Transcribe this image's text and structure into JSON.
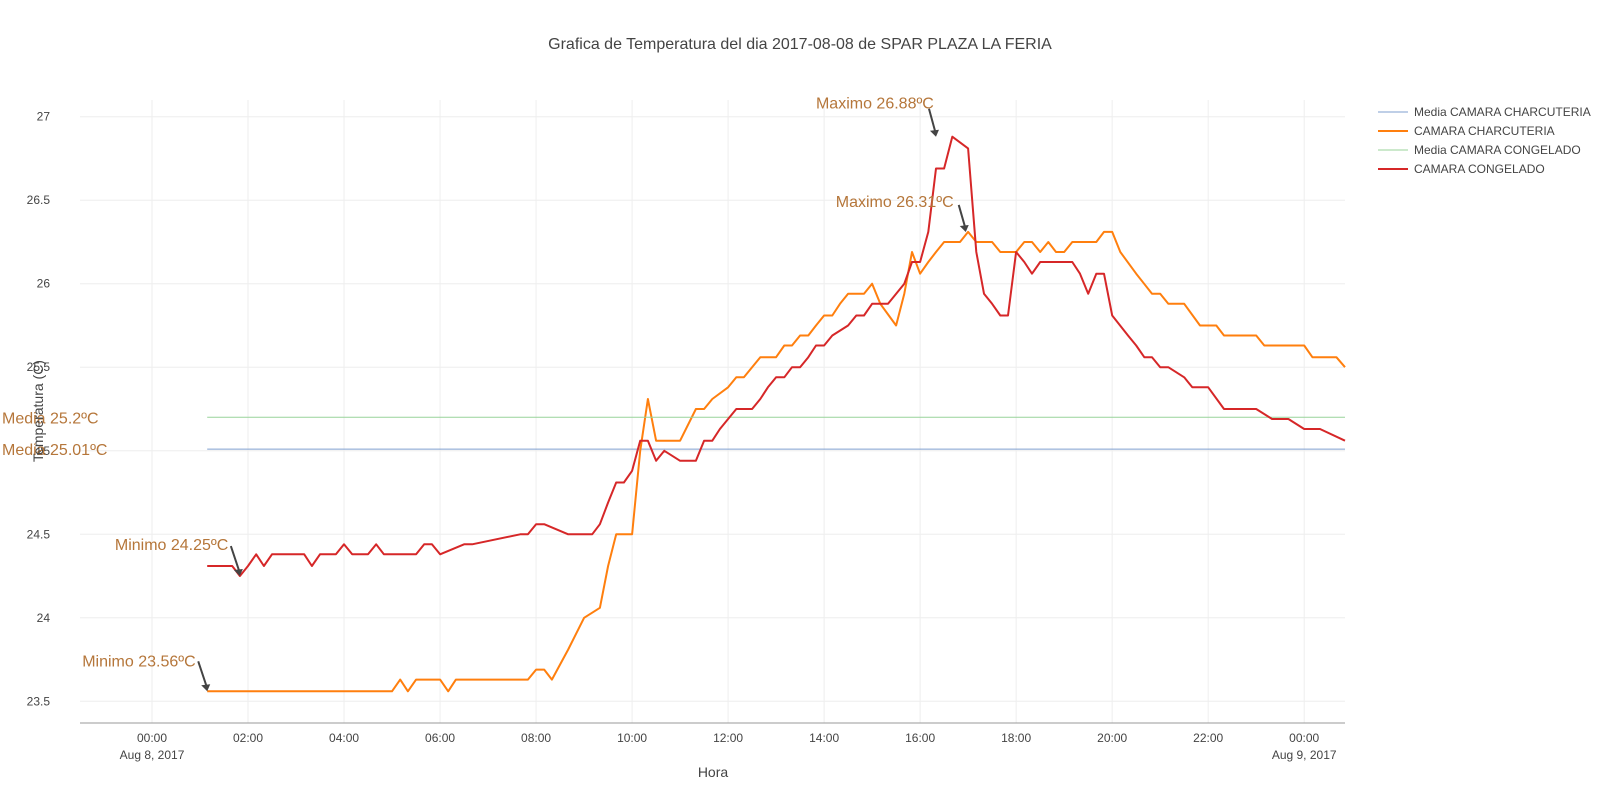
{
  "chart_data": {
    "type": "line",
    "title": "Grafica de Temperatura del dia 2017-08-08 de SPAR PLAZA LA FERIA",
    "xlabel": "Hora",
    "ylabel": "Temperatura (C)",
    "x_range": [
      -1.5,
      24.85
    ],
    "ylim": [
      23.37,
      27.1
    ],
    "grid": true,
    "legend_position": "top-right",
    "x_ticks": [
      {
        "value": 0,
        "label": "00:00",
        "sublabel": "Aug 8, 2017"
      },
      {
        "value": 2,
        "label": "02:00",
        "sublabel": ""
      },
      {
        "value": 4,
        "label": "04:00",
        "sublabel": ""
      },
      {
        "value": 6,
        "label": "06:00",
        "sublabel": ""
      },
      {
        "value": 8,
        "label": "08:00",
        "sublabel": ""
      },
      {
        "value": 10,
        "label": "10:00",
        "sublabel": ""
      },
      {
        "value": 12,
        "label": "12:00",
        "sublabel": ""
      },
      {
        "value": 14,
        "label": "14:00",
        "sublabel": ""
      },
      {
        "value": 16,
        "label": "16:00",
        "sublabel": ""
      },
      {
        "value": 18,
        "label": "18:00",
        "sublabel": ""
      },
      {
        "value": 20,
        "label": "20:00",
        "sublabel": ""
      },
      {
        "value": 22,
        "label": "22:00",
        "sublabel": ""
      },
      {
        "value": 24,
        "label": "00:00",
        "sublabel": "Aug 9, 2017"
      }
    ],
    "y_ticks": [
      {
        "value": 23.5,
        "label": "23.5"
      },
      {
        "value": 24,
        "label": "24"
      },
      {
        "value": 24.5,
        "label": "24.5"
      },
      {
        "value": 25,
        "label": "25"
      },
      {
        "value": 25.5,
        "label": "25.5"
      },
      {
        "value": 26,
        "label": "26"
      },
      {
        "value": 26.5,
        "label": "26.5"
      },
      {
        "value": 27,
        "label": "27"
      }
    ],
    "series": [
      {
        "name": "Media CAMARA CHARCUTERIA",
        "color": "#7f9fcf",
        "width": 1,
        "x": [
          1.15,
          24.85
        ],
        "y": [
          25.01,
          25.01
        ]
      },
      {
        "name": "CAMARA CHARCUTERIA",
        "color": "#ff7f0e",
        "width": 2,
        "x": [
          1.15,
          5.0,
          5.17,
          5.33,
          5.5,
          6.0,
          6.17,
          6.33,
          6.5,
          7.83,
          8.0,
          8.17,
          8.33,
          8.67,
          9.0,
          9.33,
          9.5,
          9.67,
          10.0,
          10.17,
          10.33,
          10.5,
          10.67,
          11.0,
          11.33,
          11.5,
          11.67,
          12.0,
          12.17,
          12.33,
          12.5,
          12.67,
          12.83,
          13.0,
          13.17,
          13.33,
          13.5,
          13.67,
          13.83,
          14.0,
          14.17,
          14.33,
          14.5,
          14.67,
          14.83,
          15.0,
          15.17,
          15.5,
          15.67,
          15.83,
          16.0,
          16.17,
          16.33,
          16.5,
          16.83,
          17.0,
          17.17,
          17.5,
          17.67,
          18.0,
          18.17,
          18.33,
          18.5,
          18.67,
          18.83,
          19.0,
          19.17,
          19.33,
          19.5,
          19.67,
          19.83,
          20.0,
          20.17,
          20.5,
          20.83,
          21.0,
          21.17,
          21.5,
          21.83,
          22.0,
          22.17,
          22.33,
          22.67,
          22.83,
          23.0,
          23.17,
          23.33,
          23.67,
          23.83,
          24.0,
          24.17,
          24.33,
          24.67,
          24.85
        ],
        "y": [
          23.56,
          23.56,
          23.63,
          23.56,
          23.63,
          23.63,
          23.56,
          23.63,
          23.63,
          23.63,
          23.69,
          23.69,
          23.63,
          23.81,
          24.0,
          24.06,
          24.31,
          24.5,
          24.5,
          25.0,
          25.31,
          25.06,
          25.06,
          25.06,
          25.25,
          25.25,
          25.31,
          25.38,
          25.44,
          25.44,
          25.5,
          25.56,
          25.56,
          25.56,
          25.63,
          25.63,
          25.69,
          25.69,
          25.75,
          25.81,
          25.81,
          25.88,
          25.94,
          25.94,
          25.94,
          26.0,
          25.88,
          25.75,
          25.94,
          26.19,
          26.06,
          26.13,
          26.19,
          26.25,
          26.25,
          26.31,
          26.25,
          26.25,
          26.19,
          26.19,
          26.25,
          26.25,
          26.19,
          26.25,
          26.19,
          26.19,
          26.25,
          26.25,
          26.25,
          26.25,
          26.31,
          26.31,
          26.19,
          26.06,
          25.94,
          25.94,
          25.88,
          25.88,
          25.75,
          25.75,
          25.75,
          25.69,
          25.69,
          25.69,
          25.69,
          25.63,
          25.63,
          25.63,
          25.63,
          25.63,
          25.56,
          25.56,
          25.56,
          25.5
        ]
      },
      {
        "name": "Media CAMARA CONGELADO",
        "color": "#98d39a",
        "width": 1,
        "x": [
          1.15,
          24.85
        ],
        "y": [
          25.2,
          25.2
        ]
      },
      {
        "name": "CAMARA CONGELADO",
        "color": "#d62728",
        "width": 2,
        "x": [
          1.15,
          1.67,
          1.83,
          2.0,
          2.17,
          2.33,
          2.5,
          3.17,
          3.33,
          3.5,
          3.83,
          4.0,
          4.17,
          4.5,
          4.67,
          4.83,
          5.5,
          5.67,
          5.83,
          6.0,
          6.5,
          6.67,
          7.67,
          7.83,
          8.0,
          8.17,
          8.67,
          8.83,
          9.17,
          9.33,
          9.5,
          9.67,
          9.83,
          10.0,
          10.17,
          10.33,
          10.5,
          10.67,
          11.0,
          11.33,
          11.5,
          11.67,
          11.83,
          12.0,
          12.17,
          12.5,
          12.67,
          12.83,
          13.0,
          13.17,
          13.33,
          13.5,
          13.67,
          13.83,
          14.0,
          14.17,
          14.5,
          14.67,
          14.83,
          15.0,
          15.17,
          15.33,
          15.67,
          15.83,
          16.0,
          16.17,
          16.33,
          16.5,
          16.67,
          17.0,
          17.17,
          17.33,
          17.5,
          17.67,
          17.83,
          18.0,
          18.17,
          18.33,
          18.5,
          18.67,
          19.0,
          19.17,
          19.33,
          19.5,
          19.67,
          19.83,
          20.0,
          20.33,
          20.5,
          20.67,
          20.83,
          21.0,
          21.17,
          21.5,
          21.67,
          21.83,
          22.0,
          22.33,
          22.67,
          22.83,
          23.0,
          23.33,
          23.5,
          23.67,
          24.0,
          24.17,
          24.33,
          24.85
        ],
        "y": [
          24.31,
          24.31,
          24.25,
          24.31,
          24.38,
          24.31,
          24.38,
          24.38,
          24.31,
          24.38,
          24.38,
          24.44,
          24.38,
          24.38,
          24.44,
          24.38,
          24.38,
          24.44,
          24.44,
          24.38,
          24.44,
          24.44,
          24.5,
          24.5,
          24.56,
          24.56,
          24.5,
          24.5,
          24.5,
          24.56,
          24.69,
          24.81,
          24.81,
          24.88,
          25.06,
          25.06,
          24.94,
          25.0,
          24.94,
          24.94,
          25.06,
          25.06,
          25.13,
          25.19,
          25.25,
          25.25,
          25.31,
          25.38,
          25.44,
          25.44,
          25.5,
          25.5,
          25.56,
          25.63,
          25.63,
          25.69,
          25.75,
          25.81,
          25.81,
          25.88,
          25.88,
          25.88,
          26.0,
          26.13,
          26.13,
          26.31,
          26.69,
          26.69,
          26.88,
          26.81,
          26.19,
          25.94,
          25.88,
          25.81,
          25.81,
          26.19,
          26.13,
          26.06,
          26.13,
          26.13,
          26.13,
          26.13,
          26.06,
          25.94,
          26.06,
          26.06,
          25.81,
          25.69,
          25.63,
          25.56,
          25.56,
          25.5,
          25.5,
          25.44,
          25.38,
          25.38,
          25.38,
          25.25,
          25.25,
          25.25,
          25.25,
          25.19,
          25.19,
          25.19,
          25.13,
          25.13,
          25.13,
          25.06
        ]
      }
    ],
    "annotations": [
      {
        "text": "Maximo 26.88ºC",
        "x": 16.33,
        "y": 26.88,
        "color": "#b5763a"
      },
      {
        "text": "Maximo 26.31ºC",
        "x": 16.95,
        "y": 26.31,
        "color": "#b5763a"
      },
      {
        "text": "Minimo 24.25ºC",
        "x": 1.83,
        "y": 24.25,
        "color": "#b5763a"
      },
      {
        "text": "Minimo 23.56ºC",
        "x": 1.15,
        "y": 23.56,
        "color": "#b5763a"
      },
      {
        "text": "Media 25.2ºC",
        "x": null,
        "y": 25.2,
        "color": "#b5763a"
      },
      {
        "text": "Media 25.01ºC",
        "x": null,
        "y": 25.01,
        "color": "#b5763a"
      }
    ]
  }
}
